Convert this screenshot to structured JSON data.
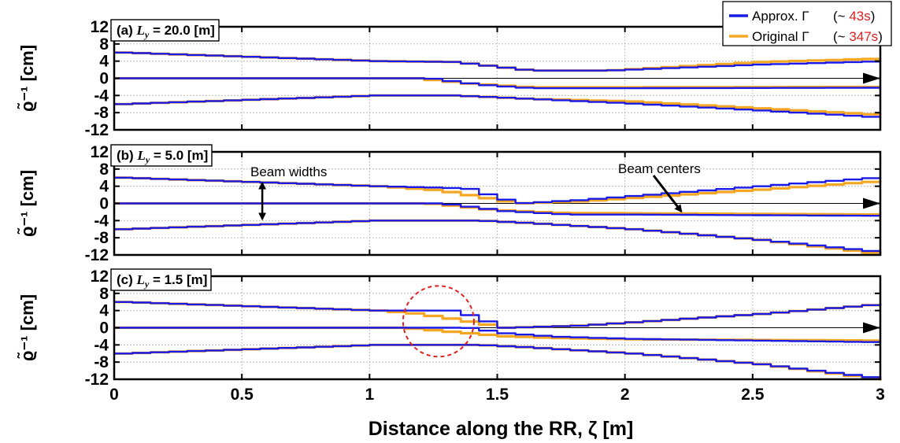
{
  "chart_data": {
    "type": "line",
    "xlabel": "Distance along the RR, ζ [m]",
    "ylabel": "ϱ̃⁻¹ [cm]",
    "xlim": [
      0,
      3
    ],
    "ylim": [
      -12,
      12
    ],
    "x_ticks": [
      "0",
      "0.5",
      "1",
      "1.5",
      "2",
      "2.5",
      "3"
    ],
    "y_ticks": [
      "12",
      "8",
      "4",
      "0",
      "-4",
      "-8",
      "-12"
    ],
    "grid": true,
    "legend": {
      "placement": "top-right",
      "entries": [
        {
          "label": "Approx. Γ",
          "time_prefix": "(~ ",
          "time": "43s",
          "time_suffix": ")",
          "color": "#1a1ae6"
        },
        {
          "label": "Original Γ",
          "time_prefix": "(~ ",
          "time": "347s",
          "time_suffix": ")",
          "color": "#f5a623"
        }
      ]
    },
    "colors": {
      "approx": "#1a1ae6",
      "original": "#f5a623",
      "circle": "#e02020"
    },
    "panels": [
      {
        "title": "(a) L_y = 20.0 [m]",
        "title_main": "(a) ",
        "title_sym": "L",
        "title_sub": "y",
        "title_tail": " = 20.0 [m]",
        "series": [
          {
            "name": "Approx. Γ",
            "role": "upper",
            "x": [
              0,
              0.5,
              1.0,
              1.3,
              1.6,
              1.9,
              2.5,
              3.0
            ],
            "y": [
              6,
              5,
              4,
              3.8,
              1.8,
              1.8,
              3.2,
              4.0
            ]
          },
          {
            "name": "Approx. Γ",
            "role": "center",
            "x": [
              0,
              1.2,
              1.4,
              1.6,
              2.0,
              3.0
            ],
            "y": [
              0,
              0,
              -1.5,
              -2.3,
              -2.3,
              -2.2
            ]
          },
          {
            "name": "Approx. Γ",
            "role": "lower",
            "x": [
              0,
              0.5,
              1.0,
              1.3,
              1.6,
              2.0,
              2.5,
              3.0
            ],
            "y": [
              -6,
              -5,
              -4,
              -4.0,
              -4.8,
              -5.9,
              -7.5,
              -9.2
            ]
          },
          {
            "name": "Original Γ",
            "role": "upper",
            "x": [
              0,
              0.5,
              1.0,
              1.3,
              1.6,
              1.9,
              2.5,
              3.0
            ],
            "y": [
              6,
              5,
              4,
              3.8,
              1.8,
              1.8,
              3.8,
              4.6
            ]
          },
          {
            "name": "Original Γ",
            "role": "center",
            "x": [
              0,
              1.15,
              1.35,
              1.6,
              2.0,
              3.0
            ],
            "y": [
              0,
              0,
              -1.2,
              -2.1,
              -2.1,
              -2.0
            ]
          },
          {
            "name": "Original Γ",
            "role": "lower",
            "x": [
              0,
              0.5,
              1.0,
              1.3,
              1.6,
              2.0,
              2.5,
              3.0
            ],
            "y": [
              -6,
              -5,
              -4,
              -4.0,
              -4.8,
              -5.4,
              -7.0,
              -8.6
            ]
          }
        ]
      },
      {
        "title": "(b) L_y = 5.0 [m]",
        "title_main": "(b) ",
        "title_sym": "L",
        "title_sub": "y",
        "title_tail": " = 5.0 [m]",
        "series": [
          {
            "name": "Approx. Γ",
            "role": "upper",
            "x": [
              0,
              0.5,
              1.0,
              1.35,
              1.55,
              1.8,
              2.5,
              3.0
            ],
            "y": [
              6,
              5,
              4,
              3.5,
              0,
              0.8,
              4.0,
              6.2
            ]
          },
          {
            "name": "Approx. Γ",
            "role": "center",
            "x": [
              0,
              1.25,
              1.5,
              1.75,
              2.0,
              3.0
            ],
            "y": [
              0,
              0,
              -1.8,
              -2.6,
              -2.6,
              -2.9
            ]
          },
          {
            "name": "Approx. Γ",
            "role": "lower",
            "x": [
              0,
              0.5,
              1.0,
              1.4,
              1.6,
              2.0,
              2.5,
              3.0
            ],
            "y": [
              -6,
              -5,
              -4,
              -4.0,
              -4.6,
              -6.0,
              -8.5,
              -11.5
            ]
          },
          {
            "name": "Original Γ",
            "role": "upper",
            "x": [
              0,
              0.5,
              1.0,
              1.25,
              1.55,
              1.8,
              2.5,
              3.0
            ],
            "y": [
              6,
              5,
              4,
              3.0,
              0,
              0.5,
              3.2,
              5.3
            ]
          },
          {
            "name": "Original Γ",
            "role": "center",
            "x": [
              0,
              1.2,
              1.45,
              1.7,
              2.0,
              3.0
            ],
            "y": [
              0,
              0,
              -1.5,
              -2.2,
              -2.3,
              -2.6
            ]
          },
          {
            "name": "Original Γ",
            "role": "lower",
            "x": [
              0,
              0.5,
              1.0,
              1.4,
              1.6,
              2.0,
              2.5,
              3.0
            ],
            "y": [
              -6,
              -5,
              -4,
              -4.0,
              -4.6,
              -6.0,
              -8.5,
              -12.0
            ]
          }
        ]
      },
      {
        "title": "(c) L_y = 1.5 [m]",
        "title_main": "(c) ",
        "title_sym": "L",
        "title_sub": "y",
        "title_tail": " = 1.5 [m]",
        "series": [
          {
            "name": "Approx. Γ",
            "role": "upper",
            "x": [
              0,
              0.5,
              1.0,
              1.3,
              1.38,
              1.5,
              1.8,
              2.5,
              3.0
            ],
            "y": [
              6,
              5,
              4,
              4.0,
              2.5,
              0,
              0.5,
              3.2,
              5.6
            ]
          },
          {
            "name": "Approx. Γ",
            "role": "center",
            "x": [
              0,
              1.35,
              1.5,
              1.7,
              2.0,
              3.0
            ],
            "y": [
              0,
              0,
              -1.3,
              -2.1,
              -2.6,
              -3.4
            ]
          },
          {
            "name": "Approx. Γ",
            "role": "lower",
            "x": [
              0,
              0.5,
              1.0,
              1.4,
              1.6,
              2.0,
              2.5,
              3.0
            ],
            "y": [
              -6,
              -5,
              -4,
              -4.0,
              -4.6,
              -6.0,
              -8.5,
              -12.0
            ]
          },
          {
            "name": "Original Γ",
            "role": "upper",
            "x": [
              0,
              0.5,
              1.0,
              1.15,
              1.3,
              1.5,
              1.8,
              2.5,
              3.0
            ],
            "y": [
              6,
              5,
              4,
              3.3,
              2.0,
              0,
              0.5,
              3.2,
              5.6
            ]
          },
          {
            "name": "Original Γ",
            "role": "center",
            "x": [
              0,
              1.1,
              1.3,
              1.5,
              1.7,
              2.0,
              3.0
            ],
            "y": [
              0,
              0,
              -1.0,
              -2.0,
              -2.4,
              -2.7,
              -3.0
            ]
          },
          {
            "name": "Original Γ",
            "role": "lower",
            "x": [
              0,
              0.5,
              1.0,
              1.4,
              1.6,
              2.0,
              2.5,
              3.0
            ],
            "y": [
              -6,
              -5,
              -4,
              -4.0,
              -4.6,
              -6.0,
              -8.5,
              -12.3
            ]
          }
        ]
      }
    ],
    "annotations": [
      {
        "panel": 1,
        "text": "Beam widths",
        "target": "double-headed arrow at ζ = 0.58 between y = 4 and y = -4"
      },
      {
        "panel": 1,
        "text": "Beam centers",
        "target": "arrow pointing to ζ = 2.23, y = -2.6"
      },
      {
        "panel": 2,
        "shape": "dashed circle",
        "center": [
          1.27,
          1.5
        ],
        "color": "#e02020"
      }
    ]
  }
}
